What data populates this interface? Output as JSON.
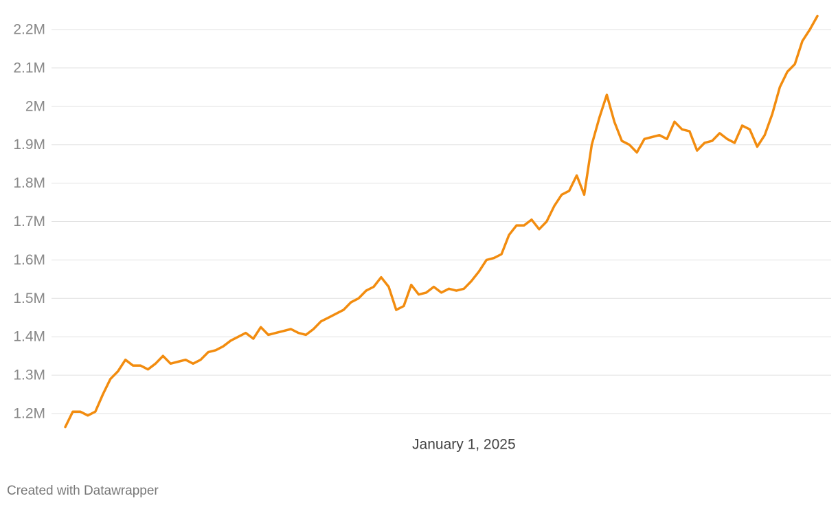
{
  "chart_data": {
    "type": "line",
    "categories": [
      null,
      null,
      null,
      null,
      null,
      null,
      null,
      null,
      null,
      null,
      null,
      null,
      null,
      null,
      null,
      null,
      null,
      null,
      null,
      null,
      null,
      null,
      null,
      null,
      null,
      null,
      null,
      null,
      null,
      null,
      null,
      null,
      null,
      null,
      null,
      null,
      null,
      null,
      null,
      null,
      null,
      null,
      null,
      null,
      null,
      null,
      null,
      null,
      null,
      null,
      null,
      null,
      null,
      "January 1, 2025",
      null,
      null,
      null,
      null,
      null,
      null,
      null,
      null,
      null,
      null,
      null,
      null,
      null,
      null,
      null,
      null,
      null,
      null,
      null,
      null,
      null,
      null,
      null,
      null,
      null,
      null,
      null,
      null,
      null,
      null,
      null,
      null,
      null,
      null,
      null,
      null,
      null,
      null,
      null,
      null,
      null,
      null,
      null,
      null,
      null,
      null,
      null
    ],
    "values": [
      1165000,
      1205000,
      1205000,
      1195000,
      1205000,
      1250000,
      1290000,
      1310000,
      1340000,
      1325000,
      1325000,
      1315000,
      1330000,
      1350000,
      1330000,
      1335000,
      1340000,
      1330000,
      1340000,
      1360000,
      1365000,
      1375000,
      1390000,
      1400000,
      1410000,
      1395000,
      1425000,
      1405000,
      1410000,
      1415000,
      1420000,
      1410000,
      1405000,
      1420000,
      1440000,
      1450000,
      1460000,
      1470000,
      1490000,
      1500000,
      1520000,
      1530000,
      1555000,
      1530000,
      1470000,
      1480000,
      1535000,
      1510000,
      1515000,
      1530000,
      1515000,
      1525000,
      1520000,
      1525000,
      1545000,
      1570000,
      1600000,
      1605000,
      1615000,
      1665000,
      1690000,
      1690000,
      1705000,
      1680000,
      1700000,
      1740000,
      1770000,
      1780000,
      1820000,
      1770000,
      1900000,
      1970000,
      2030000,
      1960000,
      1910000,
      1900000,
      1880000,
      1915000,
      1920000,
      1925000,
      1915000,
      1960000,
      1940000,
      1935000,
      1885000,
      1905000,
      1910000,
      1930000,
      1915000,
      1905000,
      1950000,
      1940000,
      1895000,
      1925000,
      1980000,
      2050000,
      2090000,
      2110000,
      2170000,
      2200000,
      2235000
    ],
    "color": "#f28c0f",
    "ylim": [
      1150000,
      2250000
    ],
    "yticks": [
      {
        "value": 1200000,
        "label": "1.2M"
      },
      {
        "value": 1300000,
        "label": "1.3M"
      },
      {
        "value": 1400000,
        "label": "1.4M"
      },
      {
        "value": 1500000,
        "label": "1.5M"
      },
      {
        "value": 1600000,
        "label": "1.6M"
      },
      {
        "value": 1700000,
        "label": "1.7M"
      },
      {
        "value": 1800000,
        "label": "1.8M"
      },
      {
        "value": 1900000,
        "label": "1.9M"
      },
      {
        "value": 2000000,
        "label": "2M"
      },
      {
        "value": 2100000,
        "label": "2.1M"
      },
      {
        "value": 2200000,
        "label": "2.2M"
      }
    ],
    "grid": true
  },
  "footer": "Created with Datawrapper"
}
